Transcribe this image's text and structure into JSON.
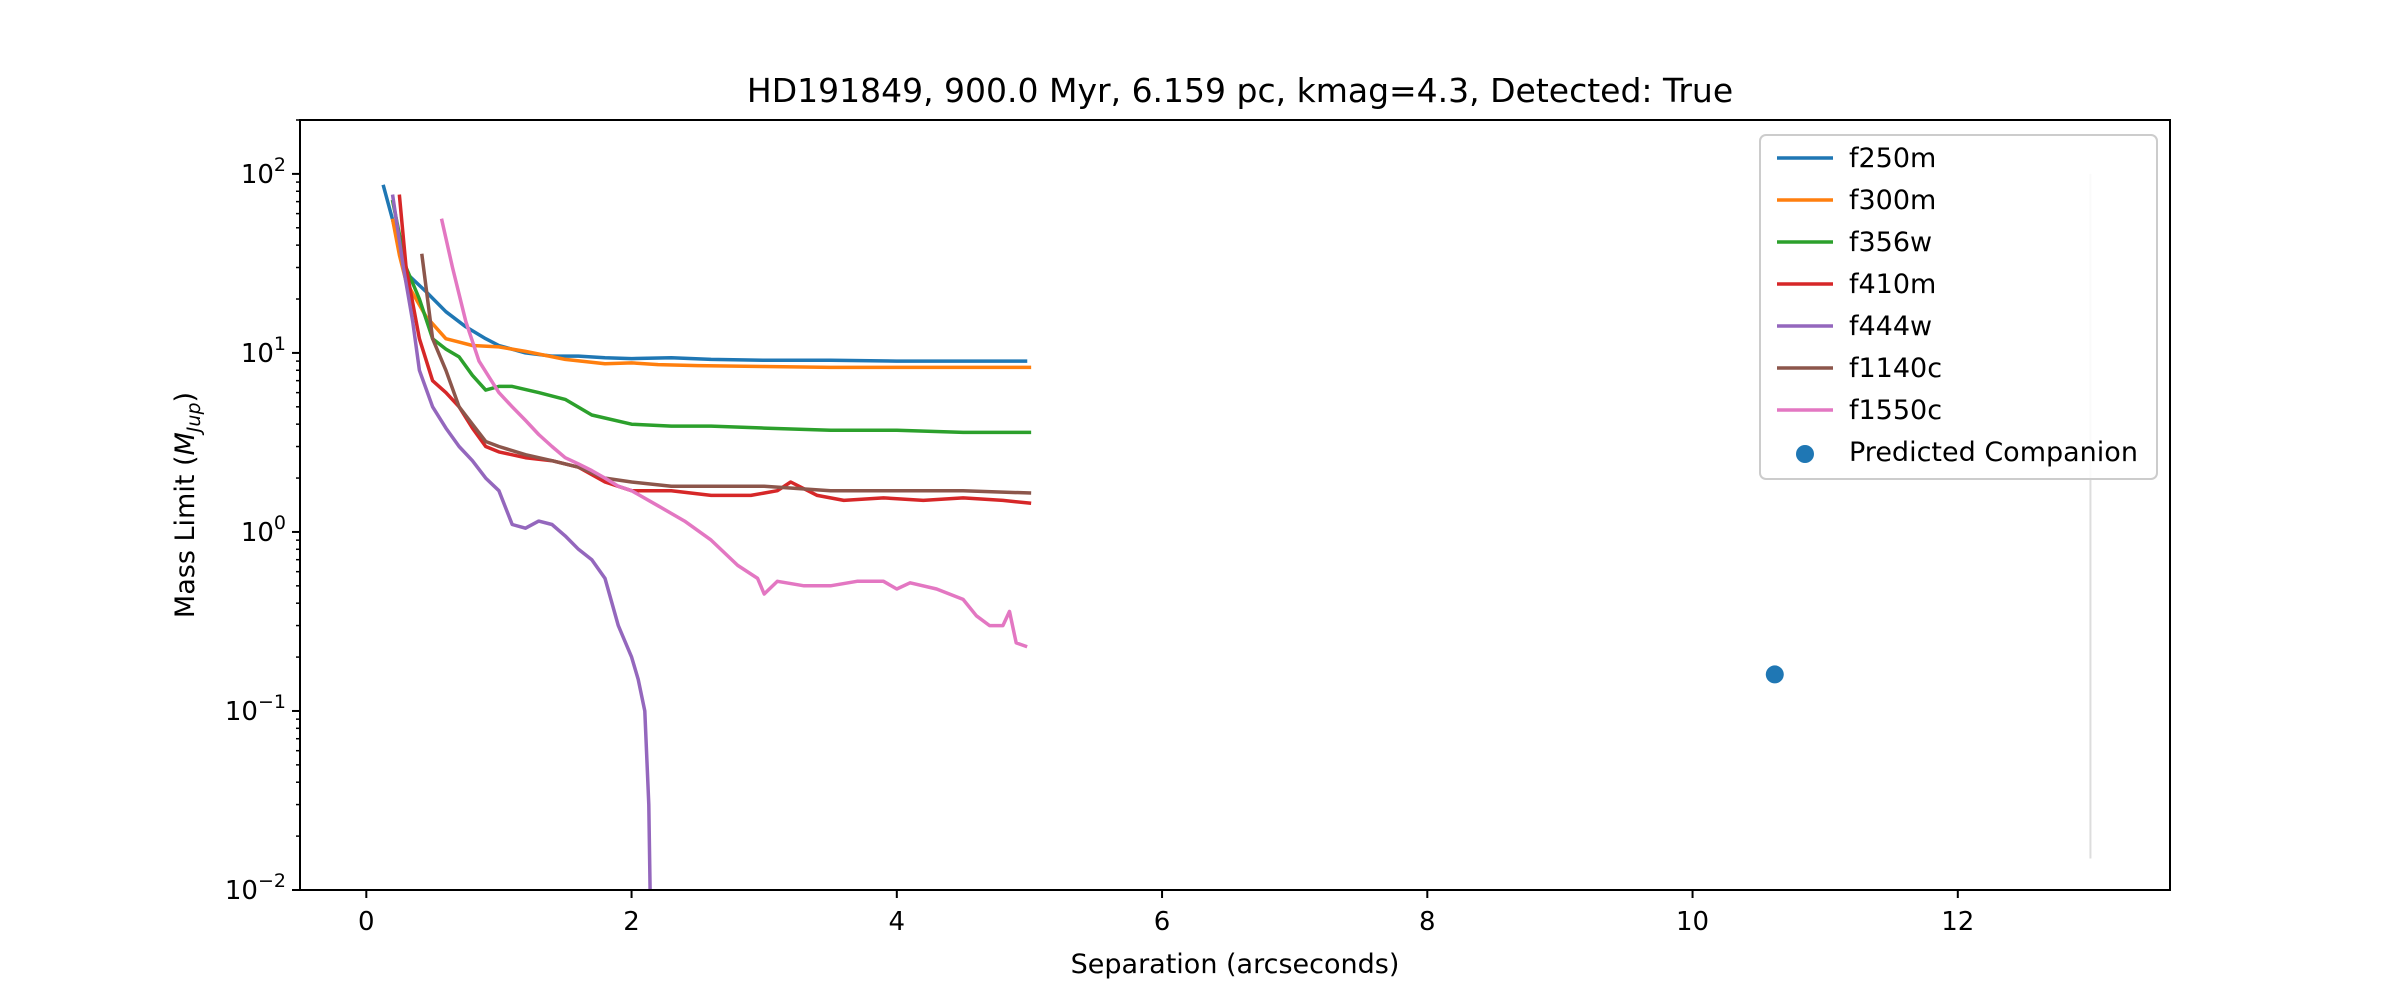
{
  "chart_data": {
    "type": "line",
    "title": "HD191849, 900.0 Myr, 6.159 pc, kmag=4.3, Detected: True",
    "xlabel": "Separation (arcseconds)",
    "ylabel_prefix": "Mass Limit (",
    "ylabel_symbol": "M",
    "ylabel_subscript": "Jup",
    "ylabel_suffix": ")",
    "xlim": [
      -0.5,
      13.6
    ],
    "ylim": [
      0.01,
      200
    ],
    "yscale": "log",
    "grid": false,
    "legend_position": "top-right",
    "xticks": [
      {
        "value": 0,
        "label": "0"
      },
      {
        "value": 2,
        "label": "2"
      },
      {
        "value": 4,
        "label": "4"
      },
      {
        "value": 6,
        "label": "6"
      },
      {
        "value": 8,
        "label": "8"
      },
      {
        "value": 10,
        "label": "10"
      },
      {
        "value": 12,
        "label": "12"
      }
    ],
    "yticks": [
      {
        "value": 100,
        "base": "10",
        "exp": "2"
      },
      {
        "value": 10,
        "base": "10",
        "exp": "1"
      },
      {
        "value": 1,
        "base": "10",
        "exp": "0"
      },
      {
        "value": 0.1,
        "base": "10",
        "exp": "−1"
      },
      {
        "value": 0.01,
        "base": "10",
        "exp": "−2"
      }
    ],
    "series": [
      {
        "name": "f250m",
        "color": "#1f77b4",
        "x": [
          0.13,
          0.2,
          0.3,
          0.45,
          0.6,
          0.75,
          0.9,
          1.0,
          1.2,
          1.4,
          1.6,
          1.8,
          2.0,
          2.3,
          2.6,
          3.0,
          3.5,
          4.0,
          4.5,
          4.97
        ],
        "y": [
          85,
          55,
          28,
          22,
          17,
          14,
          12,
          11,
          10,
          9.6,
          9.6,
          9.4,
          9.3,
          9.4,
          9.2,
          9.1,
          9.1,
          9.0,
          9.0,
          9.0
        ]
      },
      {
        "name": "f300m",
        "color": "#ff7f0e",
        "x": [
          0.2,
          0.25,
          0.3,
          0.45,
          0.6,
          0.7,
          0.8,
          1.0,
          1.2,
          1.5,
          1.8,
          2.0,
          2.2,
          2.5,
          3.0,
          3.5,
          4.0,
          4.5,
          5.0
        ],
        "y": [
          55,
          35,
          25,
          16,
          12,
          11.5,
          11,
          10.8,
          10.2,
          9.2,
          8.7,
          8.8,
          8.6,
          8.5,
          8.4,
          8.3,
          8.3,
          8.3,
          8.3
        ]
      },
      {
        "name": "f356w",
        "color": "#2ca02c",
        "x": [
          0.2,
          0.3,
          0.4,
          0.5,
          0.6,
          0.7,
          0.8,
          0.9,
          1.0,
          1.1,
          1.3,
          1.5,
          1.7,
          2.0,
          2.3,
          2.6,
          3.0,
          3.5,
          4.0,
          4.5,
          5.0
        ],
        "y": [
          70,
          30,
          20,
          12,
          10.5,
          9.5,
          7.5,
          6.2,
          6.5,
          6.5,
          6.0,
          5.5,
          4.5,
          4.0,
          3.9,
          3.9,
          3.8,
          3.7,
          3.7,
          3.6,
          3.6
        ]
      },
      {
        "name": "f410m",
        "color": "#d62728",
        "x": [
          0.25,
          0.3,
          0.4,
          0.5,
          0.6,
          0.7,
          0.8,
          0.9,
          1.0,
          1.2,
          1.4,
          1.6,
          1.8,
          2.0,
          2.3,
          2.6,
          2.9,
          3.1,
          3.2,
          3.4,
          3.6,
          3.9,
          4.2,
          4.5,
          4.8,
          5.0
        ],
        "y": [
          75,
          30,
          12,
          7,
          6,
          5,
          3.8,
          3.0,
          2.8,
          2.6,
          2.5,
          2.3,
          1.9,
          1.7,
          1.7,
          1.6,
          1.6,
          1.7,
          1.9,
          1.6,
          1.5,
          1.55,
          1.5,
          1.55,
          1.5,
          1.45
        ]
      },
      {
        "name": "f444w",
        "color": "#9467bd",
        "x": [
          0.2,
          0.28,
          0.35,
          0.4,
          0.5,
          0.6,
          0.7,
          0.8,
          0.9,
          1.0,
          1.1,
          1.2,
          1.3,
          1.4,
          1.5,
          1.6,
          1.7,
          1.8,
          1.9,
          2.0,
          2.05,
          2.1,
          2.13,
          2.14
        ],
        "y": [
          75,
          30,
          15,
          8,
          5,
          3.8,
          3.0,
          2.5,
          2.0,
          1.7,
          1.1,
          1.05,
          1.15,
          1.1,
          0.95,
          0.8,
          0.7,
          0.55,
          0.3,
          0.2,
          0.15,
          0.1,
          0.03,
          0.01
        ]
      },
      {
        "name": "f1140c",
        "color": "#8c564b",
        "x": [
          0.42,
          0.5,
          0.6,
          0.7,
          0.8,
          0.9,
          1.0,
          1.2,
          1.4,
          1.6,
          1.8,
          2.0,
          2.3,
          2.6,
          3.0,
          3.5,
          4.0,
          4.5,
          5.0
        ],
        "y": [
          35,
          12,
          8,
          5,
          4,
          3.2,
          3.0,
          2.7,
          2.5,
          2.3,
          2.0,
          1.9,
          1.8,
          1.8,
          1.8,
          1.7,
          1.7,
          1.7,
          1.65
        ]
      },
      {
        "name": "f1550c",
        "color": "#e377c2",
        "x": [
          0.57,
          0.65,
          0.75,
          0.85,
          1.0,
          1.1,
          1.2,
          1.3,
          1.4,
          1.5,
          1.6,
          1.7,
          1.8,
          1.9,
          2.0,
          2.2,
          2.4,
          2.6,
          2.8,
          2.95,
          3.0,
          3.1,
          3.3,
          3.5,
          3.7,
          3.9,
          4.0,
          4.1,
          4.3,
          4.5,
          4.6,
          4.7,
          4.8,
          4.85,
          4.9,
          4.97
        ],
        "y": [
          55,
          30,
          15,
          9,
          6,
          5,
          4.2,
          3.5,
          3.0,
          2.6,
          2.4,
          2.2,
          2.0,
          1.8,
          1.7,
          1.4,
          1.15,
          0.9,
          0.65,
          0.55,
          0.45,
          0.53,
          0.5,
          0.5,
          0.53,
          0.53,
          0.48,
          0.52,
          0.48,
          0.42,
          0.34,
          0.3,
          0.3,
          0.36,
          0.24,
          0.23
        ]
      }
    ],
    "points": [
      {
        "name": "Predicted Companion",
        "color": "#1f77b4",
        "x": 10.62,
        "y": 0.16
      }
    ],
    "vlines": [
      {
        "x": 13.0,
        "y_from": 0.015,
        "y_to": 100,
        "color": "#dddddd"
      }
    ]
  }
}
